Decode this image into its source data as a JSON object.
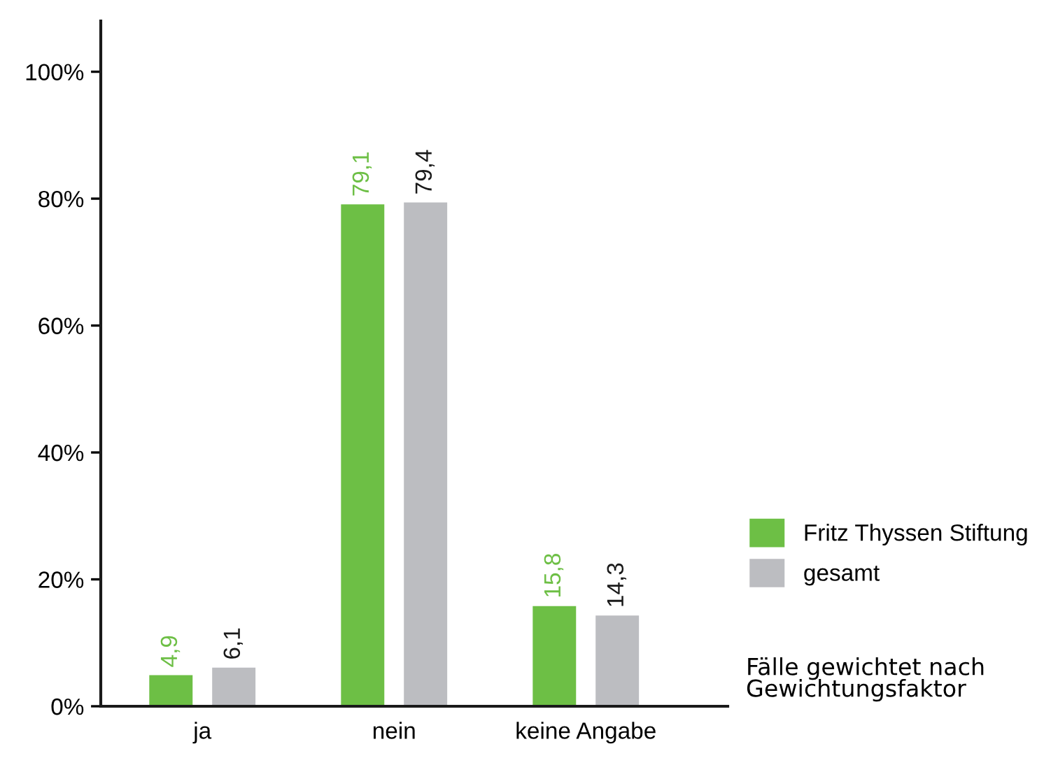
{
  "chart_data": {
    "type": "bar",
    "categories": [
      "ja",
      "nein",
      "keine Angabe"
    ],
    "series": [
      {
        "name": "Fritz Thyssen Stiftung",
        "color": "#6dbf45",
        "values": [
          4.9,
          79.1,
          15.8
        ],
        "value_labels": [
          "4,9",
          "79,1",
          "15,8"
        ]
      },
      {
        "name": "gesamt",
        "color": "#bcbdc1",
        "values": [
          6.1,
          79.4,
          14.3
        ],
        "value_labels": [
          "6,1",
          "79,4",
          "14,3"
        ]
      }
    ],
    "ylim": [
      0,
      108
    ],
    "yticks": [
      {
        "value": 0,
        "label": "0%"
      },
      {
        "value": 20,
        "label": "20%"
      },
      {
        "value": 40,
        "label": "40%"
      },
      {
        "value": 60,
        "label": "60%"
      },
      {
        "value": 80,
        "label": "80%"
      },
      {
        "value": 100,
        "label": "100%"
      }
    ],
    "grid": false,
    "legend": "right",
    "annotations": [
      "Fälle gewichtet nach\nGewichtungsfaktor"
    ]
  }
}
